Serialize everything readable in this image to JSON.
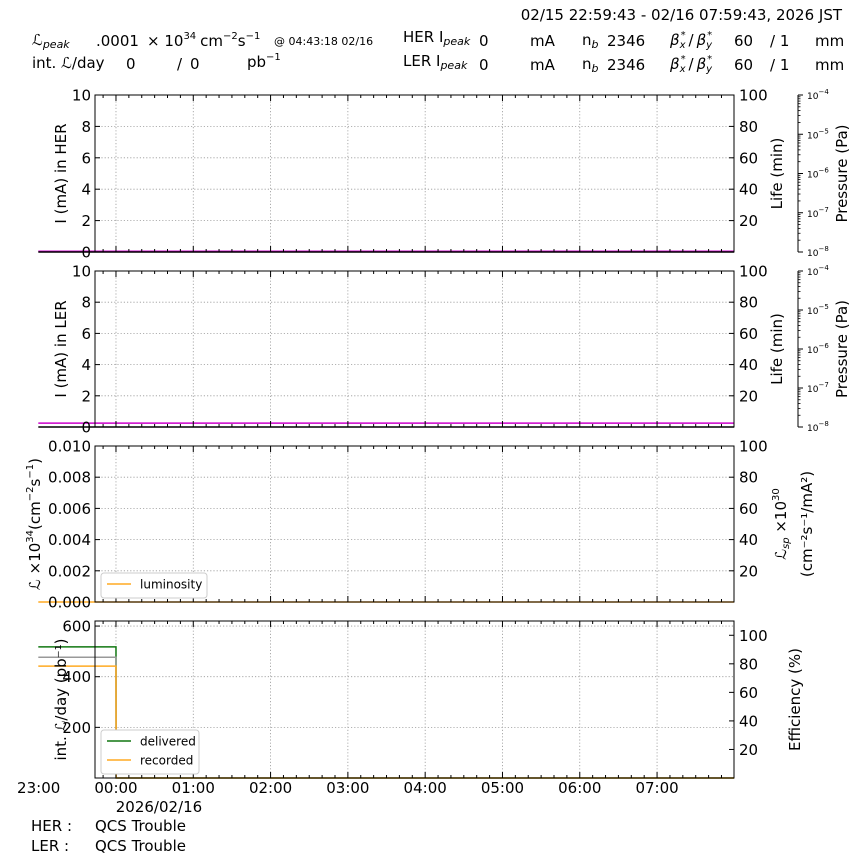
{
  "header": {
    "time_range": "02/15 22:59:43 - 02/16 07:59:43, 2026 JST",
    "lpeak_label": "ℒ",
    "lpeak_sub": "peak",
    "lpeak_value": ".0001",
    "lpeak_times": "× 10",
    "lpeak_exp": "34",
    "lpeak_unit_a": "cm",
    "lpeak_unit_exp_a": "−2",
    "lpeak_unit_b": "s",
    "lpeak_unit_exp_b": "−1",
    "lpeak_at": "@ 04:43:18 02/16",
    "intl_label": "int. ℒ/day",
    "intl_delivered": "0",
    "intl_slash": "/",
    "intl_recorded": "0",
    "intl_unit": "pb",
    "intl_unit_exp": "−1",
    "her_label": "HER I",
    "ler_label": "LER I",
    "peak_sub": "peak",
    "her_ipeak": "0",
    "ler_ipeak": "0",
    "ma_unit": "mA",
    "nb_label": "n",
    "nb_sub": "b",
    "her_nb": "2346",
    "ler_nb": "2346",
    "beta_label": "β",
    "beta_x": "x",
    "beta_y": "y",
    "beta_star": "*",
    "beta_slash": "/",
    "her_beta_x": "60",
    "her_beta_y": "/ 1",
    "ler_beta_x": "60",
    "ler_beta_y": "/ 1",
    "mm_unit": "mm"
  },
  "chart_data": [
    {
      "type": "line",
      "title": "",
      "ylabel": "I (mA) in HER",
      "ylim": [
        0,
        10
      ],
      "yticks": [
        "0",
        "2",
        "4",
        "6",
        "8",
        "10"
      ],
      "right_ylabel": "Life (min)",
      "right_ylim": [
        0,
        100
      ],
      "right_yticks": [
        "20",
        "40",
        "60",
        "80",
        "100"
      ],
      "pressure_ylabel": "Pressure (Pa)",
      "pressure_scale": "log",
      "pressure_ylim": [
        1e-08,
        0.0001
      ],
      "pressure_ticks": [
        {
          "base": "10",
          "exp": "−8"
        },
        {
          "base": "10",
          "exp": "−7"
        },
        {
          "base": "10",
          "exp": "−6"
        },
        {
          "base": "10",
          "exp": "−5"
        },
        {
          "base": "10",
          "exp": "−4"
        }
      ],
      "grid": true,
      "series": [
        {
          "color": "#cc00cc",
          "x": [
            "22:59:43",
            "07:59:43"
          ],
          "values": [
            0.05,
            0.05
          ]
        },
        {
          "color": "#000000",
          "x": [
            "22:59:43",
            "07:59:43"
          ],
          "values": [
            0,
            0
          ]
        }
      ]
    },
    {
      "type": "line",
      "title": "",
      "ylabel": "I (mA) in LER",
      "ylim": [
        0,
        10
      ],
      "yticks": [
        "0",
        "2",
        "4",
        "6",
        "8",
        "10"
      ],
      "right_ylabel": "Life (min)",
      "right_ylim": [
        0,
        100
      ],
      "right_yticks": [
        "20",
        "40",
        "60",
        "80",
        "100"
      ],
      "pressure_ylabel": "Pressure (Pa)",
      "pressure_scale": "log",
      "pressure_ylim": [
        1e-08,
        0.0001
      ],
      "pressure_ticks": [
        {
          "base": "10",
          "exp": "−8"
        },
        {
          "base": "10",
          "exp": "−7"
        },
        {
          "base": "10",
          "exp": "−6"
        },
        {
          "base": "10",
          "exp": "−5"
        },
        {
          "base": "10",
          "exp": "−4"
        }
      ],
      "grid": true,
      "series": [
        {
          "color": "#cc00cc",
          "x": [
            "22:59:43",
            "07:59:43"
          ],
          "values": [
            0.25,
            0.25
          ]
        },
        {
          "color": "#000000",
          "x": [
            "22:59:43",
            "07:59:43"
          ],
          "values": [
            0,
            0
          ]
        }
      ]
    },
    {
      "type": "line",
      "title": "",
      "ylabel_main": "ℒ ×10",
      "ylabel_exp": "34",
      "ylabel_unit": "(cm",
      "ylabel_unit_exp_a": "−2",
      "ylabel_unit_b": "s",
      "ylabel_unit_exp_b": "−1",
      "ylabel_close": ")",
      "ylim": [
        0,
        0.01
      ],
      "yticks": [
        "0.000",
        "0.002",
        "0.004",
        "0.006",
        "0.008",
        "0.010"
      ],
      "right_ylabel_line1_a": "ℒ",
      "right_ylabel_line1_sub": "sp",
      "right_ylabel_line1_b": " ×10",
      "right_ylabel_line1_exp": "30",
      "right_ylabel_line2": "(cm⁻²s⁻¹/mA²)",
      "right_ylim": [
        0,
        100
      ],
      "right_yticks": [
        "20",
        "40",
        "60",
        "80",
        "100"
      ],
      "legend": "bottom-left",
      "grid": true,
      "series": [
        {
          "name": "luminosity",
          "color": "#ffaa22",
          "x": [
            "22:59:43",
            "07:59:43"
          ],
          "values": [
            0,
            0
          ]
        }
      ]
    },
    {
      "type": "line",
      "title": "",
      "ylabel": "int. ℒ/day (pb⁻¹)",
      "ylim": [
        0,
        620
      ],
      "yticks": [
        "200",
        "400",
        "600"
      ],
      "right_ylabel": "Efficiency (%)",
      "right_ylim": [
        0,
        110
      ],
      "right_yticks": [
        "20",
        "40",
        "60",
        "80",
        "100"
      ],
      "legend": "bottom-left",
      "grid": true,
      "xticks": [
        "23:00",
        "00:00",
        "01:00",
        "02:00",
        "03:00",
        "04:00",
        "05:00",
        "06:00",
        "07:00"
      ],
      "xdate": "2026/02/16",
      "series": [
        {
          "name": "delivered",
          "color": "#117711",
          "x": [
            "22:59:43",
            "00:00:00",
            "00:00:10",
            "07:59:43"
          ],
          "values": [
            518,
            518,
            0,
            0
          ]
        },
        {
          "name": "",
          "color": "#999999",
          "x": [
            "22:59:43",
            "00:00:00",
            "00:00:10",
            "07:59:43"
          ],
          "values": [
            477,
            477,
            0,
            0
          ]
        },
        {
          "name": "recorded",
          "color": "#ffaa22",
          "x": [
            "22:59:43",
            "00:00:00",
            "00:00:10",
            "07:59:43"
          ],
          "values": [
            442,
            442,
            0,
            0
          ]
        }
      ]
    }
  ],
  "footer": {
    "her_label": "HER :",
    "her_status": "QCS Trouble",
    "ler_label": "LER :",
    "ler_status": "QCS Trouble"
  }
}
